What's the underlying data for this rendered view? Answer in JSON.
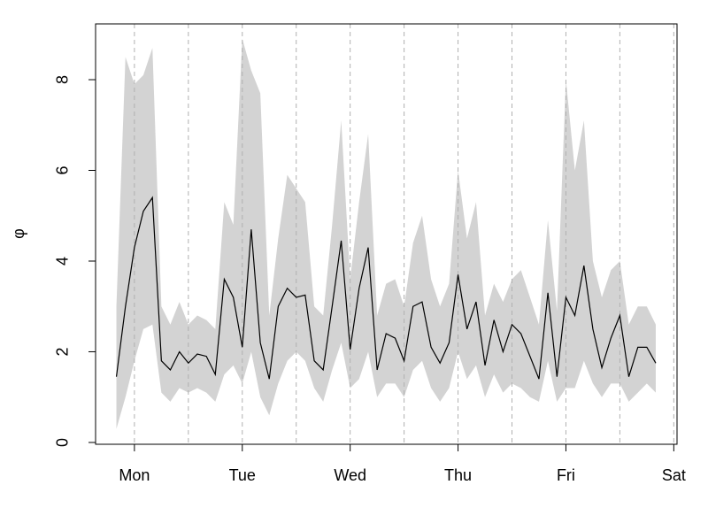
{
  "chart_data": {
    "type": "line",
    "ylabel": "φ",
    "x": [
      -0.167,
      -0.083,
      0,
      0.083,
      0.167,
      0.25,
      0.333,
      0.417,
      0.5,
      0.583,
      0.667,
      0.75,
      0.833,
      0.917,
      1,
      1.083,
      1.167,
      1.25,
      1.333,
      1.417,
      1.5,
      1.583,
      1.667,
      1.75,
      1.833,
      1.917,
      2,
      2.083,
      2.167,
      2.25,
      2.333,
      2.417,
      2.5,
      2.583,
      2.667,
      2.75,
      2.833,
      2.917,
      3,
      3.083,
      3.167,
      3.25,
      3.333,
      3.417,
      3.5,
      3.583,
      3.667,
      3.75,
      3.833,
      3.917,
      4,
      4.083,
      4.167,
      4.25,
      4.333,
      4.417,
      4.5,
      4.583,
      4.667,
      4.75,
      4.833
    ],
    "series": [
      {
        "color": "#000000",
        "values": [
          1.45,
          3.0,
          4.3,
          5.1,
          5.4,
          1.8,
          1.6,
          2.0,
          1.75,
          1.95,
          1.9,
          1.5,
          3.6,
          3.2,
          2.1,
          4.7,
          2.2,
          1.4,
          3.0,
          3.4,
          3.2,
          3.25,
          1.8,
          1.6,
          3.0,
          4.45,
          2.05,
          3.4,
          4.3,
          1.6,
          2.4,
          2.3,
          1.8,
          3.0,
          3.1,
          2.1,
          1.75,
          2.2,
          3.7,
          2.5,
          3.1,
          1.7,
          2.7,
          2.0,
          2.6,
          2.4,
          1.9,
          1.4,
          3.3,
          1.45,
          3.2,
          2.8,
          3.9,
          2.5,
          1.65,
          2.3,
          2.8,
          1.45,
          2.1,
          2.1,
          1.75
        ]
      }
    ],
    "band": {
      "color": "#d3d3d3",
      "lower": [
        0.3,
        1.0,
        1.8,
        2.5,
        2.6,
        1.1,
        0.9,
        1.2,
        1.1,
        1.2,
        1.1,
        0.9,
        1.5,
        1.7,
        1.3,
        2.0,
        1.0,
        0.6,
        1.3,
        1.8,
        2.0,
        1.8,
        1.2,
        0.9,
        1.6,
        2.2,
        1.2,
        1.4,
        2.0,
        1.0,
        1.3,
        1.3,
        1.0,
        1.6,
        1.8,
        1.2,
        0.9,
        1.2,
        2.0,
        1.4,
        1.7,
        1.0,
        1.5,
        1.1,
        1.3,
        1.2,
        1.0,
        0.9,
        1.8,
        0.9,
        1.2,
        1.2,
        1.8,
        1.3,
        1.0,
        1.3,
        1.3,
        0.9,
        1.1,
        1.3,
        1.1
      ],
      "upper": [
        3.0,
        8.5,
        7.9,
        8.1,
        8.7,
        3.0,
        2.6,
        3.1,
        2.6,
        2.8,
        2.7,
        2.5,
        5.3,
        4.8,
        8.9,
        8.2,
        7.7,
        2.8,
        4.5,
        5.9,
        5.6,
        5.3,
        3.0,
        2.8,
        4.8,
        7.1,
        3.6,
        5.3,
        6.8,
        2.8,
        3.5,
        3.6,
        3.0,
        4.4,
        5.0,
        3.6,
        3.0,
        3.5,
        6.0,
        4.5,
        5.3,
        2.8,
        3.5,
        3.1,
        3.6,
        3.8,
        3.2,
        2.6,
        4.9,
        2.9,
        8.0,
        6.0,
        7.1,
        4.0,
        3.2,
        3.8,
        4.0,
        2.6,
        3.0,
        3.0,
        2.6
      ]
    },
    "xlim": [
      -0.36,
      5.03
    ],
    "ylim": [
      -0.04,
      9.23
    ],
    "xticks": [
      {
        "value": 0,
        "label": "Mon"
      },
      {
        "value": 1,
        "label": "Tue"
      },
      {
        "value": 2,
        "label": "Wed"
      },
      {
        "value": 3,
        "label": "Thu"
      },
      {
        "value": 4,
        "label": "Fri"
      },
      {
        "value": 5,
        "label": "Sat"
      }
    ],
    "yticks": [
      0,
      2,
      4,
      6,
      8
    ],
    "xgrid": [
      0,
      0.5,
      1,
      1.5,
      2,
      2.5,
      3,
      3.5,
      4,
      4.5,
      5
    ],
    "grid": true
  }
}
